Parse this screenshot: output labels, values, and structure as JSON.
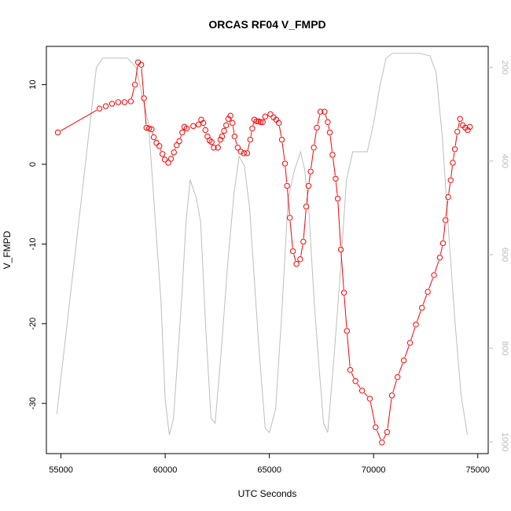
{
  "chart_data": {
    "type": "line",
    "title": "ORCAS RF04 V_FMPD",
    "xlabel": "UTC Seconds",
    "ylabel": "V_FMPD",
    "xlim": [
      54300,
      75500
    ],
    "ylim": [
      -36.3,
      14.8
    ],
    "y2lim": [
      1025,
      155
    ],
    "x_ticks": [
      55000,
      60000,
      65000,
      70000,
      75000
    ],
    "y_ticks": [
      -30,
      -20,
      -10,
      0,
      10
    ],
    "y2_ticks": [
      200,
      400,
      600,
      800,
      1000
    ],
    "colors": {
      "primary": "#ff0000",
      "secondary": "#bebebe",
      "axis": "#000000",
      "axis_right": "#bbbbbb"
    },
    "series": [
      {
        "color": "#ff0000",
        "marker": "circle-open",
        "points": [
          [
            54850,
            4.0
          ],
          [
            56850,
            7.0
          ],
          [
            57150,
            7.3
          ],
          [
            57450,
            7.6
          ],
          [
            57750,
            7.8
          ],
          [
            58050,
            7.8
          ],
          [
            58350,
            7.9
          ],
          [
            58550,
            10.0
          ],
          [
            58700,
            12.8
          ],
          [
            58850,
            12.5
          ],
          [
            58980,
            8.3
          ],
          [
            59100,
            4.6
          ],
          [
            59230,
            4.5
          ],
          [
            59350,
            4.4
          ],
          [
            59450,
            3.4
          ],
          [
            59580,
            2.7
          ],
          [
            59720,
            2.3
          ],
          [
            59870,
            1.3
          ],
          [
            59980,
            0.6
          ],
          [
            60150,
            0.2
          ],
          [
            60280,
            0.7
          ],
          [
            60420,
            1.5
          ],
          [
            60550,
            2.4
          ],
          [
            60680,
            2.9
          ],
          [
            60820,
            4.0
          ],
          [
            60920,
            4.7
          ],
          [
            61030,
            4.5
          ],
          [
            61350,
            4.8
          ],
          [
            61600,
            5.0
          ],
          [
            61730,
            5.6
          ],
          [
            61830,
            5.2
          ],
          [
            61930,
            4.3
          ],
          [
            62030,
            3.5
          ],
          [
            62130,
            3.0
          ],
          [
            62230,
            2.8
          ],
          [
            62330,
            2.1
          ],
          [
            62530,
            2.1
          ],
          [
            62650,
            3.1
          ],
          [
            62730,
            3.5
          ],
          [
            62830,
            4.2
          ],
          [
            62930,
            4.9
          ],
          [
            63030,
            5.7
          ],
          [
            63130,
            6.1
          ],
          [
            63230,
            5.2
          ],
          [
            63330,
            3.5
          ],
          [
            63480,
            2.1
          ],
          [
            63630,
            1.6
          ],
          [
            63780,
            1.4
          ],
          [
            63930,
            1.4
          ],
          [
            64080,
            3.1
          ],
          [
            64180,
            4.5
          ],
          [
            64280,
            5.6
          ],
          [
            64380,
            5.4
          ],
          [
            64480,
            5.4
          ],
          [
            64580,
            5.3
          ],
          [
            64680,
            5.3
          ],
          [
            64800,
            6.0
          ],
          [
            65050,
            6.3
          ],
          [
            65200,
            5.9
          ],
          [
            65330,
            5.6
          ],
          [
            65450,
            5.2
          ],
          [
            65600,
            3.1
          ],
          [
            65750,
            0.1
          ],
          [
            65850,
            -2.7
          ],
          [
            65980,
            -6.7
          ],
          [
            66130,
            -10.9
          ],
          [
            66300,
            -12.5
          ],
          [
            66480,
            -11.9
          ],
          [
            66630,
            -9.7
          ],
          [
            66770,
            -5.3
          ],
          [
            66880,
            -2.7
          ],
          [
            66980,
            -0.9
          ],
          [
            67130,
            2.1
          ],
          [
            67280,
            4.6
          ],
          [
            67450,
            6.6
          ],
          [
            67650,
            6.6
          ],
          [
            67800,
            5.3
          ],
          [
            67900,
            4.0
          ],
          [
            68030,
            1.2
          ],
          [
            68180,
            -1.8
          ],
          [
            68280,
            -4.3
          ],
          [
            68430,
            -10.7
          ],
          [
            68580,
            -16.1
          ],
          [
            68720,
            -20.9
          ],
          [
            68880,
            -25.8
          ],
          [
            69130,
            -27.2
          ],
          [
            69450,
            -28.4
          ],
          [
            69820,
            -29.4
          ],
          [
            70100,
            -33.0
          ],
          [
            70400,
            -34.9
          ],
          [
            70650,
            -33.6
          ],
          [
            70880,
            -29.0
          ],
          [
            71150,
            -26.7
          ],
          [
            71450,
            -24.6
          ],
          [
            71750,
            -22.4
          ],
          [
            72030,
            -20.1
          ],
          [
            72320,
            -18.0
          ],
          [
            72600,
            -16.0
          ],
          [
            72900,
            -13.9
          ],
          [
            73180,
            -11.7
          ],
          [
            73330,
            -9.9
          ],
          [
            73450,
            -7.0
          ],
          [
            73580,
            -4.1
          ],
          [
            73700,
            -2.0
          ],
          [
            73800,
            0.2
          ],
          [
            73900,
            1.9
          ],
          [
            74020,
            4.1
          ],
          [
            74150,
            5.7
          ],
          [
            74280,
            4.9
          ],
          [
            74400,
            4.6
          ],
          [
            74520,
            4.3
          ],
          [
            74620,
            4.7
          ]
        ]
      },
      {
        "color": "#bebebe",
        "axis": "right",
        "marker": "none",
        "points": [
          [
            54800,
            940
          ],
          [
            56700,
            200
          ],
          [
            57000,
            180
          ],
          [
            57300,
            180
          ],
          [
            57700,
            180
          ],
          [
            58200,
            180
          ],
          [
            58600,
            200
          ],
          [
            59200,
            320
          ],
          [
            59800,
            700
          ],
          [
            60000,
            910
          ],
          [
            60200,
            985
          ],
          [
            60400,
            950
          ],
          [
            60800,
            690
          ],
          [
            61000,
            530
          ],
          [
            61200,
            440
          ],
          [
            61500,
            480
          ],
          [
            61700,
            530
          ],
          [
            61950,
            760
          ],
          [
            62200,
            950
          ],
          [
            62400,
            960
          ],
          [
            62700,
            800
          ],
          [
            63000,
            620
          ],
          [
            63300,
            470
          ],
          [
            63550,
            390
          ],
          [
            63800,
            410
          ],
          [
            64050,
            500
          ],
          [
            64200,
            600
          ],
          [
            64500,
            800
          ],
          [
            64800,
            970
          ],
          [
            65000,
            980
          ],
          [
            65300,
            930
          ],
          [
            65600,
            720
          ],
          [
            65900,
            480
          ],
          [
            66200,
            420
          ],
          [
            66500,
            380
          ],
          [
            66700,
            420
          ],
          [
            66900,
            510
          ],
          [
            67150,
            700
          ],
          [
            67400,
            850
          ],
          [
            67600,
            960
          ],
          [
            67800,
            980
          ],
          [
            68100,
            820
          ],
          [
            68400,
            640
          ],
          [
            68700,
            440
          ],
          [
            69000,
            380
          ],
          [
            69300,
            380
          ],
          [
            69700,
            380
          ],
          [
            70000,
            320
          ],
          [
            70300,
            240
          ],
          [
            70600,
            180
          ],
          [
            70900,
            170
          ],
          [
            71500,
            170
          ],
          [
            72200,
            170
          ],
          [
            72700,
            175
          ],
          [
            73000,
            210
          ],
          [
            73300,
            350
          ],
          [
            73600,
            550
          ],
          [
            73900,
            740
          ],
          [
            74200,
            900
          ],
          [
            74500,
            985
          ]
        ]
      }
    ]
  }
}
